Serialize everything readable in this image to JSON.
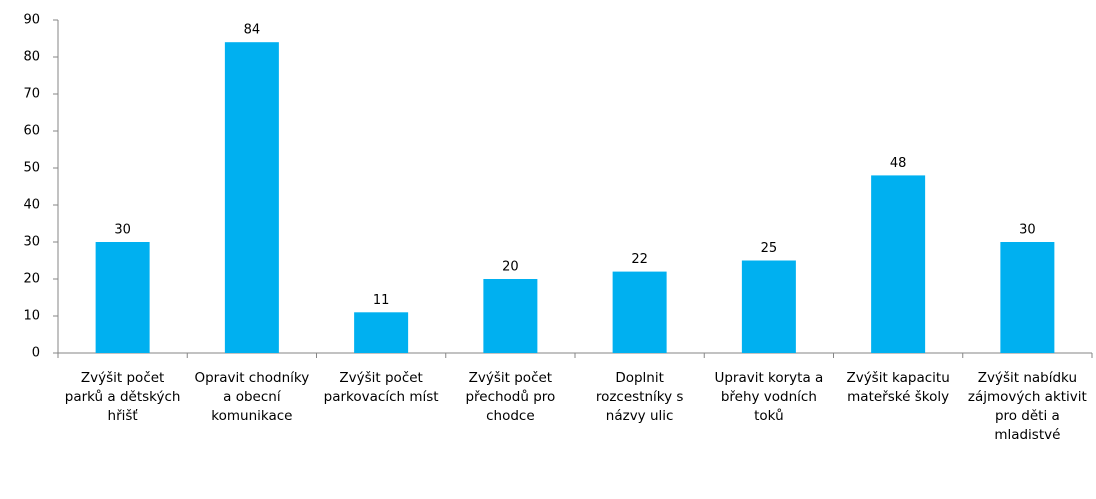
{
  "chart_data": {
    "type": "bar",
    "categories": [
      "Zvýšit počet parků a dětských hřišť",
      "Opravit chodníky a obecní komunikace",
      "Zvýšit počet parkovacích míst",
      "Zvýšit počet přechodů pro chodce",
      "Doplnit rozcestníky s názvy ulic",
      "Upravit koryta a břehy vodních toků",
      "Zvýšit kapacitu mateřské školy",
      "Zvýšit nabídku zájmových aktivit pro děti a mladistvé"
    ],
    "values": [
      30,
      84,
      11,
      20,
      22,
      25,
      48,
      30
    ],
    "color": "#00b0f0",
    "ylim": [
      0,
      90
    ],
    "yticks": [
      0,
      10,
      20,
      30,
      40,
      50,
      60,
      70,
      80,
      90
    ],
    "grid": false
  }
}
